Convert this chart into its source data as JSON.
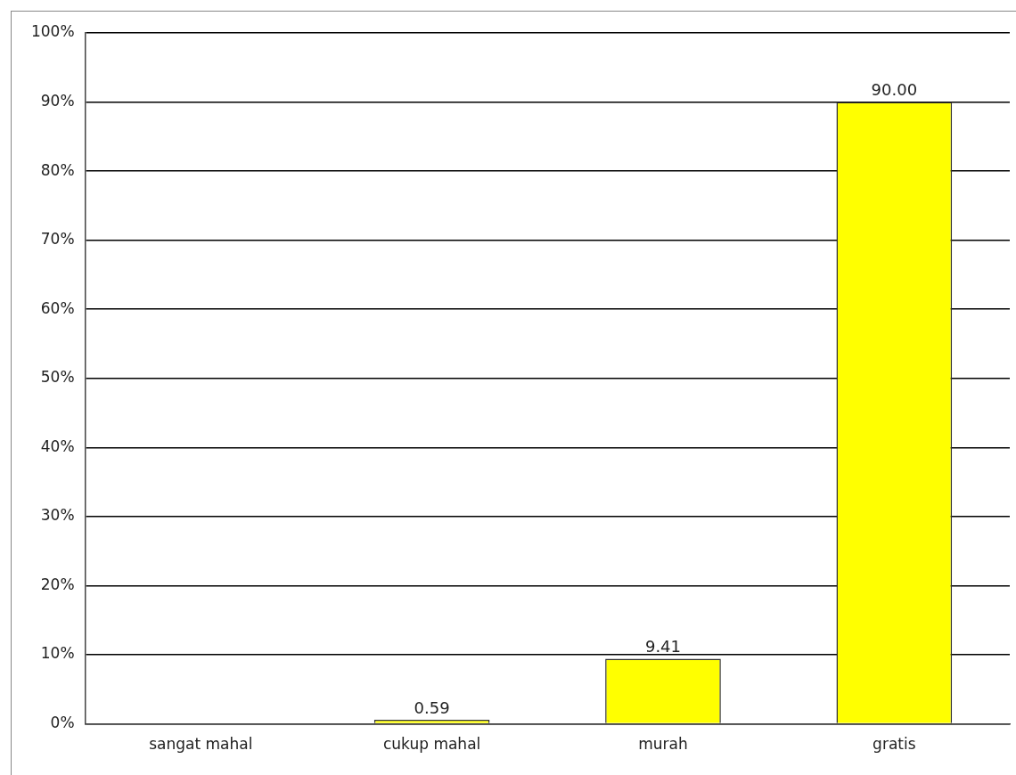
{
  "chart_data": {
    "type": "bar",
    "categories": [
      "sangat mahal",
      "cukup mahal",
      "murah",
      "gratis"
    ],
    "values": [
      0,
      0.59,
      9.41,
      90
    ],
    "value_labels": [
      null,
      "0.59",
      "9.41",
      "90.00"
    ],
    "color": "#ffff00",
    "ylim": [
      0,
      100
    ],
    "yticks": [
      {
        "value": 0,
        "label": "0%"
      },
      {
        "value": 10,
        "label": "10%"
      },
      {
        "value": 20,
        "label": "20%"
      },
      {
        "value": 30,
        "label": "30%"
      },
      {
        "value": 40,
        "label": "40%"
      },
      {
        "value": 50,
        "label": "50%"
      },
      {
        "value": 60,
        "label": "60%"
      },
      {
        "value": 70,
        "label": "70%"
      },
      {
        "value": 80,
        "label": "80%"
      },
      {
        "value": 90,
        "label": "90%"
      },
      {
        "value": 100,
        "label": "100%"
      }
    ],
    "grid": "y",
    "legend": false
  }
}
